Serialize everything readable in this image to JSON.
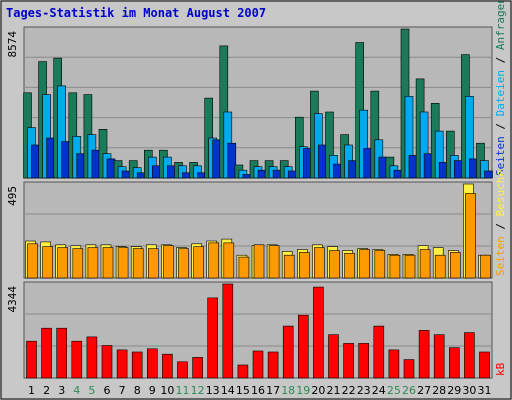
{
  "chart_data": {
    "title": "Tages-Statistik im Monat August 2007",
    "days": [
      "1",
      "2",
      "3",
      "4",
      "5",
      "6",
      "7",
      "8",
      "9",
      "10",
      "11",
      "12",
      "13",
      "14",
      "15",
      "16",
      "17",
      "18",
      "19",
      "20",
      "21",
      "22",
      "23",
      "24",
      "25",
      "26",
      "27",
      "28",
      "29",
      "30",
      "31"
    ],
    "weekend_days": [
      "4",
      "5",
      "11",
      "12",
      "18",
      "19",
      "25",
      "26"
    ],
    "colors": {
      "background": "#c8c8c8",
      "panel": "#b8b8b8",
      "grid": "#8a8a8a",
      "title": "#0000cc",
      "day_label": "#000000",
      "weekend_label": "#2e8b57",
      "anfragen": "#1a7a5a",
      "dateien": "#00aaee",
      "seiten_top": "#0033cc",
      "seiten": "#ffee44",
      "besuche": "#ff9900",
      "kb": "#ff0000"
    },
    "panels": [
      {
        "id": "top",
        "type": "bar",
        "max_label": "8574",
        "ymax": 8574,
        "side_labels": [
          {
            "text": "Seiten",
            "color": "#0033cc"
          },
          {
            "text": " / ",
            "color": "#000000"
          },
          {
            "text": "Dateien",
            "color": "#00aaee"
          },
          {
            "text": " / ",
            "color": "#000000"
          },
          {
            "text": "Anfragen",
            "color": "#1a7a5a"
          }
        ],
        "series": [
          {
            "name": "Anfragen",
            "color": "#1a7a5a",
            "values": [
              4900,
              6700,
              6900,
              4900,
              4800,
              2800,
              1000,
              1000,
              1600,
              1600,
              900,
              900,
              4600,
              7600,
              750,
              1000,
              1000,
              1000,
              3500,
              5000,
              3800,
              2500,
              7800,
              5000,
              1200,
              8574,
              5700,
              4300,
              2700,
              7100,
              2000
            ]
          },
          {
            "name": "Dateien",
            "color": "#00aaee",
            "values": [
              2900,
              4800,
              5300,
              2400,
              2500,
              1400,
              650,
              600,
              1200,
              1200,
              700,
              700,
              2300,
              3800,
              450,
              650,
              650,
              650,
              1800,
              3700,
              1300,
              1900,
              3900,
              2200,
              700,
              4700,
              3800,
              2700,
              1300,
              4700,
              1000
            ]
          },
          {
            "name": "Seiten",
            "color": "#0033cc",
            "values": [
              1900,
              2300,
              2100,
              1400,
              1600,
              1100,
              400,
              300,
              700,
              700,
              300,
              300,
              2200,
              2000,
              200,
              450,
              450,
              400,
              1700,
              1900,
              800,
              1000,
              1700,
              1200,
              450,
              1300,
              1400,
              900,
              1000,
              1100,
              400
            ]
          }
        ]
      },
      {
        "id": "mid",
        "type": "bar",
        "max_label": "495",
        "ymax": 495,
        "side_labels": [
          {
            "text": "Seiten",
            "color": "#ff9900"
          },
          {
            "text": " / ",
            "color": "#000000"
          },
          {
            "text": "Besuche",
            "color": "#ffee44"
          }
        ],
        "series": [
          {
            "name": "Seiten",
            "color": "#ffee44",
            "values": [
              195,
              190,
              175,
              170,
              175,
              175,
              165,
              165,
              175,
              175,
              160,
              180,
              195,
              205,
              120,
              170,
              175,
              140,
              150,
              175,
              165,
              145,
              155,
              150,
              125,
              125,
              170,
              160,
              145,
              495,
              120
            ]
          },
          {
            "name": "Besuche",
            "color": "#ff9900",
            "values": [
              180,
              165,
              160,
              155,
              160,
              160,
              160,
              155,
              155,
              170,
              155,
              165,
              185,
              185,
              110,
              175,
              170,
              120,
              135,
              160,
              145,
              130,
              150,
              145,
              120,
              120,
              150,
              120,
              135,
              445,
              120
            ]
          }
        ]
      },
      {
        "id": "bottom",
        "type": "bar",
        "max_label": "4344",
        "ymax": 4344,
        "side_labels": [
          {
            "text": "kB",
            "color": "#ff0000"
          }
        ],
        "series": [
          {
            "name": "kB",
            "color": "#ff0000",
            "values": [
              1700,
              2300,
              2300,
              1700,
              1900,
              1500,
              1300,
              1200,
              1350,
              1100,
              750,
              950,
              3700,
              4344,
              600,
              1250,
              1200,
              2400,
              2900,
              4200,
              2000,
              1600,
              1600,
              2400,
              1300,
              850,
              2200,
              2000,
              1400,
              2100,
              1200
            ]
          }
        ]
      }
    ]
  }
}
